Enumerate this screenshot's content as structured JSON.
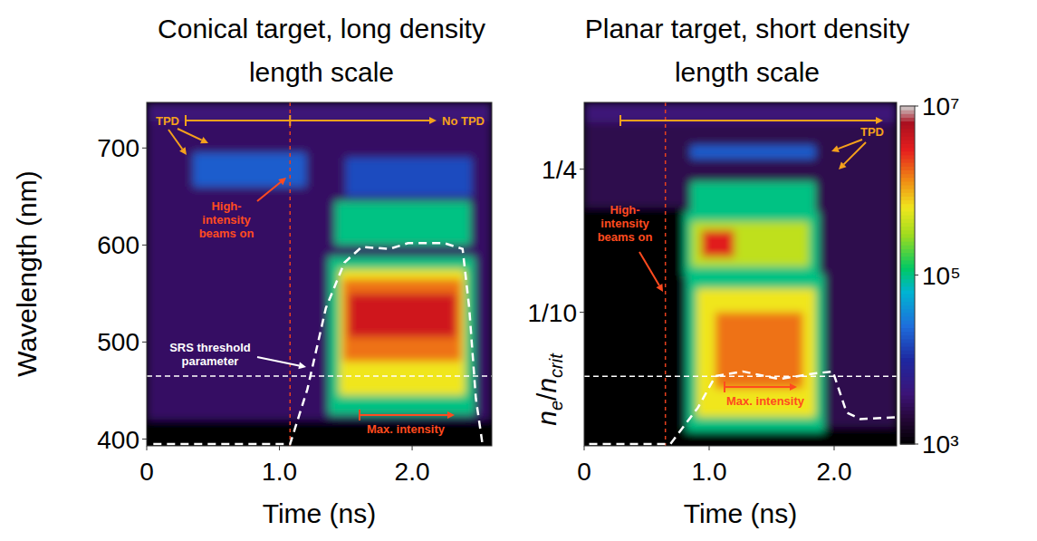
{
  "chart_data": [
    {
      "type": "heatmap",
      "title": "Conical target, long density length scale",
      "xlabel": "Time (ns)",
      "ylabel": "Wavelength (nm)",
      "xlim": [
        0,
        2.6
      ],
      "ylim": [
        393,
        747
      ],
      "xticks": [
        0,
        {
          "value": 1,
          "label": "1.0"
        },
        {
          "value": 2,
          "label": "2.0"
        }
      ],
      "yticks": [
        400,
        500,
        600,
        700
      ],
      "cells": [
        {
          "x": [
            0,
            2.6
          ],
          "y": [
            393,
            747
          ],
          "value": 3200
        },
        {
          "x": [
            0,
            2.6
          ],
          "y": [
            727,
            747
          ],
          "value": 4000
        },
        {
          "x": [
            0,
            2.6
          ],
          "y": [
            393,
            420
          ],
          "value": 1000
        },
        {
          "x": [
            0.35,
            1.2
          ],
          "y": [
            660,
            695
          ],
          "value": 20000
        },
        {
          "x": [
            1.5,
            2.45
          ],
          "y": [
            650,
            690
          ],
          "value": 16000
        },
        {
          "x": [
            1.42,
            2.44
          ],
          "y": [
            600,
            645
          ],
          "value": 100000
        },
        {
          "x": [
            1.37,
            2.47
          ],
          "y": [
            425,
            588
          ],
          "value": 100000
        },
        {
          "x": [
            1.45,
            2.4
          ],
          "y": [
            445,
            575
          ],
          "value": 630000
        },
        {
          "x": [
            1.48,
            2.37
          ],
          "y": [
            480,
            565
          ],
          "value": 1600000
        },
        {
          "x": [
            1.52,
            2.33
          ],
          "y": [
            505,
            550
          ],
          "value": 4000000
        }
      ],
      "series": [
        {
          "name": "SRS threshold parameter",
          "color": "#ffffff",
          "line_style": "dashed",
          "x": [
            0.05,
            1.08,
            1.21,
            1.35,
            1.49,
            1.62,
            1.83,
            1.97,
            2.24,
            2.38,
            2.43,
            2.48,
            2.53
          ],
          "values": [
            395,
            395,
            451,
            535,
            582,
            598,
            596,
            602,
            602,
            596,
            535,
            442,
            395
          ]
        }
      ],
      "hlines": [
        465
      ],
      "vlines": [
        1.08
      ],
      "annotations": [
        {
          "text": "TPD",
          "color": "#f5a11c"
        },
        {
          "text": "No TPD",
          "color": "#f5a11c"
        },
        {
          "text": "High-intensity beams on",
          "color": "#ff4b1f"
        },
        {
          "text": "Max. intensity",
          "color": "#ff4b1f"
        }
      ]
    },
    {
      "type": "heatmap",
      "title": "Planar target, short density length scale",
      "xlabel": "Time (ns)",
      "ylabel": [
        {
          "text": "n"
        },
        {
          "text": "e",
          "sub": true
        },
        {
          "text": "/"
        },
        {
          "text": "n"
        },
        {
          "text": "crit",
          "sub": true
        }
      ],
      "xlim": [
        0,
        2.5
      ],
      "ylim": [
        -0.04,
        0.32
      ],
      "xticks": [
        0,
        {
          "value": 1,
          "label": "1.0"
        },
        {
          "value": 2,
          "label": "2.0"
        }
      ],
      "yticks": [
        {
          "value": 0.1,
          "label": "1/10"
        },
        {
          "value": 0.25,
          "label": "1/4"
        }
      ],
      "cells": [
        {
          "x": [
            0,
            2.5
          ],
          "y": [
            -0.04,
            0.32
          ],
          "value": 2500
        },
        {
          "x": [
            0,
            0.8
          ],
          "y": [
            -0.04,
            0.21
          ],
          "value": 1000
        },
        {
          "x": [
            0.8,
            2.5
          ],
          "y": [
            -0.04,
            -0.02
          ],
          "value": 1000
        },
        {
          "x": [
            0,
            2.5
          ],
          "y": [
            0.299,
            0.32
          ],
          "value": 4000
        },
        {
          "x": [
            0.85,
            1.85
          ],
          "y": [
            0.261,
            0.275
          ],
          "value": 20000
        },
        {
          "x": [
            0.85,
            1.85
          ],
          "y": [
            0.204,
            0.237
          ],
          "value": 100000
        },
        {
          "x": [
            0.8,
            1.88
          ],
          "y": [
            0.138,
            0.205
          ],
          "value": 100000
        },
        {
          "x": [
            0.86,
            1.8
          ],
          "y": [
            0.148,
            0.195
          ],
          "value": 400000
        },
        {
          "x": [
            0.94,
            1.2
          ],
          "y": [
            0.158,
            0.186
          ],
          "value": 3200000
        },
        {
          "x": [
            0.82,
            1.92
          ],
          "y": [
            -0.025,
            0.14
          ],
          "value": 100000
        },
        {
          "x": [
            0.9,
            1.85
          ],
          "y": [
            -0.01,
            0.125
          ],
          "value": 630000
        },
        {
          "x": [
            1.05,
            1.75
          ],
          "y": [
            0.02,
            0.1
          ],
          "value": 1600000
        }
      ],
      "series": [
        {
          "color": "#ffffff",
          "line_style": "dashed",
          "x": [
            0.04,
            0.69,
            0.91,
            1.05,
            1.27,
            1.56,
            1.85,
            1.99,
            2.1,
            2.21,
            2.5
          ],
          "values": [
            -0.038,
            -0.038,
            0,
            0.033,
            0.038,
            0.03,
            0.036,
            0.038,
            -0.005,
            -0.012,
            -0.01
          ]
        }
      ],
      "hlines": [
        0.033
      ],
      "vlines": [
        0.65
      ],
      "annotations": [
        {
          "text": "TPD",
          "color": "#f5a11c"
        },
        {
          "text": "High-intensity beams on",
          "color": "#ff4b1f"
        },
        {
          "text": "Max. intensity",
          "color": "#ff4b1f"
        }
      ]
    }
  ],
  "colorbar": {
    "lim": [
      1000,
      10000000
    ],
    "log": true,
    "ticks": [
      {
        "value": 1000,
        "label": "10³"
      },
      {
        "value": 100000,
        "label": "10⁵"
      },
      {
        "value": 10000000,
        "label": "10⁷"
      }
    ]
  }
}
